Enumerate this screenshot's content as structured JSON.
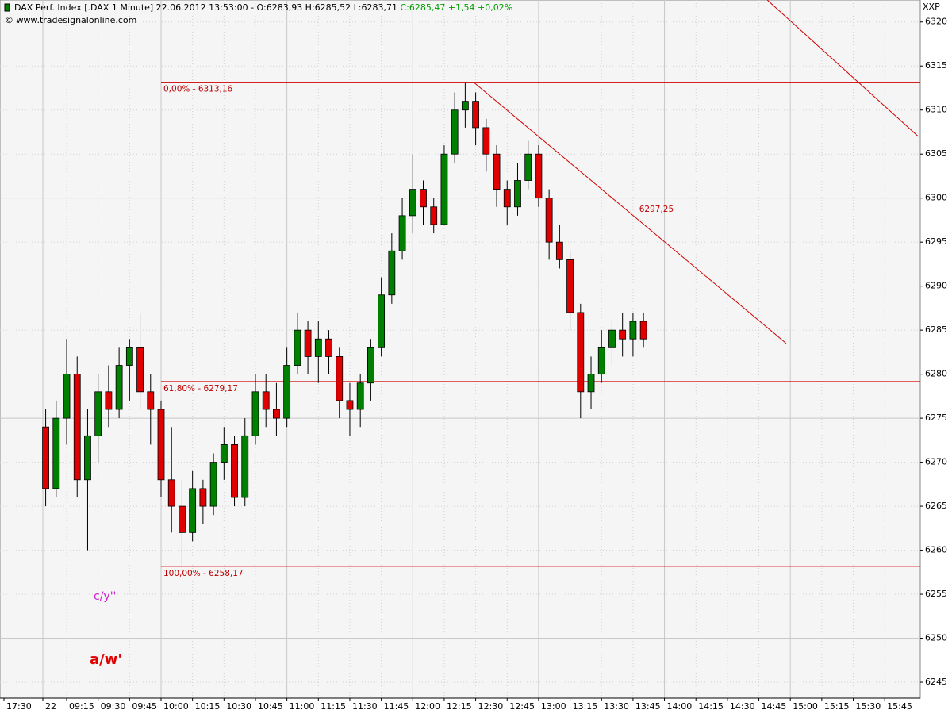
{
  "header": {
    "title": "DAX Perf. Index [.DAX  1 Minute] 22.06.2012 13:53:00 - O:6283,93 H:6285,52 L:6283,71",
    "last": "C:6285,47 +1,54 +0,02%",
    "source": "© www.tradesignalonline.com",
    "symbol": "XXP"
  },
  "wave_labels": [
    "c/y''",
    "a/w'"
  ],
  "chart_data": {
    "type": "candlestick",
    "ylim": [
      6243.2,
      6322.5
    ],
    "yticks": [
      6245,
      6250,
      6255,
      6260,
      6265,
      6270,
      6275,
      6280,
      6285,
      6290,
      6295,
      6300,
      6305,
      6310,
      6315,
      6320
    ],
    "xticks": [
      "17:30",
      "22",
      "09:15",
      "09:30",
      "09:45",
      "10:00",
      "10:15",
      "10:30",
      "10:45",
      "11:00",
      "11:15",
      "11:30",
      "11:45",
      "12:00",
      "12:15",
      "12:30",
      "12:45",
      "13:00",
      "13:15",
      "13:30",
      "13:45",
      "14:00",
      "14:15",
      "14:30",
      "14:45",
      "15:00",
      "15:15",
      "15:30",
      "15:45"
    ],
    "grid": true,
    "candles": {
      "x": [
        "09:05",
        "09:10",
        "09:15",
        "09:20",
        "09:25",
        "09:30",
        "09:35",
        "09:40",
        "09:45",
        "09:50",
        "09:55",
        "10:00",
        "10:05",
        "10:10",
        "10:15",
        "10:20",
        "10:25",
        "10:30",
        "10:35",
        "10:40",
        "10:45",
        "10:50",
        "10:55",
        "11:00",
        "11:05",
        "11:10",
        "11:15",
        "11:20",
        "11:25",
        "11:30",
        "11:35",
        "11:40",
        "11:45",
        "11:50",
        "11:55",
        "12:00",
        "12:05",
        "12:10",
        "12:15",
        "12:20",
        "12:25",
        "12:30",
        "12:35",
        "12:40",
        "12:45",
        "12:50",
        "12:55",
        "13:00",
        "13:05",
        "13:10",
        "13:15",
        "13:20",
        "13:25",
        "13:30",
        "13:35",
        "13:40",
        "13:45",
        "13:50"
      ],
      "open": [
        6274,
        6267,
        6275,
        6280,
        6268,
        6273,
        6278,
        6276,
        6281,
        6283,
        6278,
        6276,
        6268,
        6265,
        6262,
        6267,
        6265,
        6270,
        6272,
        6266,
        6273,
        6278,
        6276,
        6275,
        6281,
        6285,
        6282,
        6284,
        6282,
        6277,
        6276,
        6279,
        6283,
        6289,
        6294,
        6298,
        6301,
        6299,
        6297,
        6305,
        6310,
        6311,
        6308,
        6305,
        6301,
        6299,
        6302,
        6305,
        6300,
        6295,
        6293,
        6287,
        6278,
        6280,
        6283,
        6285,
        6284,
        6286
      ],
      "high": [
        6276,
        6277,
        6284,
        6282,
        6276,
        6280,
        6281,
        6283,
        6284,
        6287,
        6280,
        6277,
        6274,
        6268,
        6269,
        6268,
        6271,
        6274,
        6273,
        6275,
        6280,
        6280,
        6279,
        6283,
        6287,
        6286,
        6286,
        6285,
        6283,
        6279,
        6280,
        6284,
        6291,
        6296,
        6300,
        6305,
        6302,
        6300,
        6306,
        6312,
        6313.16,
        6312,
        6309,
        6306,
        6302,
        6304,
        6306.5,
        6306,
        6301,
        6297,
        6294,
        6288,
        6282,
        6285,
        6286,
        6287,
        6287,
        6287
      ],
      "low": [
        6265,
        6266,
        6272,
        6266,
        6260,
        6270,
        6274,
        6275,
        6277,
        6276,
        6272,
        6266,
        6262,
        6258.17,
        6261,
        6263,
        6264,
        6268,
        6265,
        6265,
        6272,
        6274,
        6273,
        6274,
        6280,
        6280,
        6279,
        6280,
        6275,
        6273,
        6274,
        6277,
        6282,
        6288,
        6293,
        6296,
        6297,
        6296,
        6297,
        6304,
        6308,
        6306,
        6303,
        6299,
        6297,
        6298,
        6301,
        6299,
        6293,
        6292,
        6285,
        6275,
        6276,
        6279,
        6281,
        6282,
        6282,
        6283
      ],
      "close": [
        6267,
        6275,
        6280,
        6268,
        6273,
        6278,
        6276,
        6281,
        6283,
        6278,
        6276,
        6268,
        6265,
        6262,
        6267,
        6265,
        6270,
        6272,
        6266,
        6273,
        6278,
        6276,
        6275,
        6281,
        6285,
        6282,
        6284,
        6282,
        6277,
        6276,
        6279,
        6283,
        6289,
        6294,
        6298,
        6301,
        6299,
        6297,
        6305,
        6310,
        6311,
        6308,
        6305,
        6301,
        6299,
        6302,
        6305,
        6300,
        6295,
        6293,
        6287,
        6278,
        6280,
        6283,
        6285,
        6284,
        6286,
        6284
      ],
      "up_color": "#008000",
      "down_color": "#e00000"
    },
    "levels": [
      {
        "label": "0,00% - 6313,16",
        "value": 6313.16
      },
      {
        "label": "61,80% - 6279,17",
        "value": 6279.17
      },
      {
        "label": "100,00% - 6258,17",
        "value": 6258.17
      }
    ],
    "level_start": "10:00",
    "line_color": "#d00000",
    "trendlines": [
      {
        "x": [
          "12:29",
          "14:58"
        ],
        "y": [
          6313.16,
          6283.5
        ],
        "label": "6297,25"
      },
      {
        "x": [
          "14:49",
          "16:01"
        ],
        "y": [
          6322.5,
          6307
        ]
      }
    ]
  }
}
